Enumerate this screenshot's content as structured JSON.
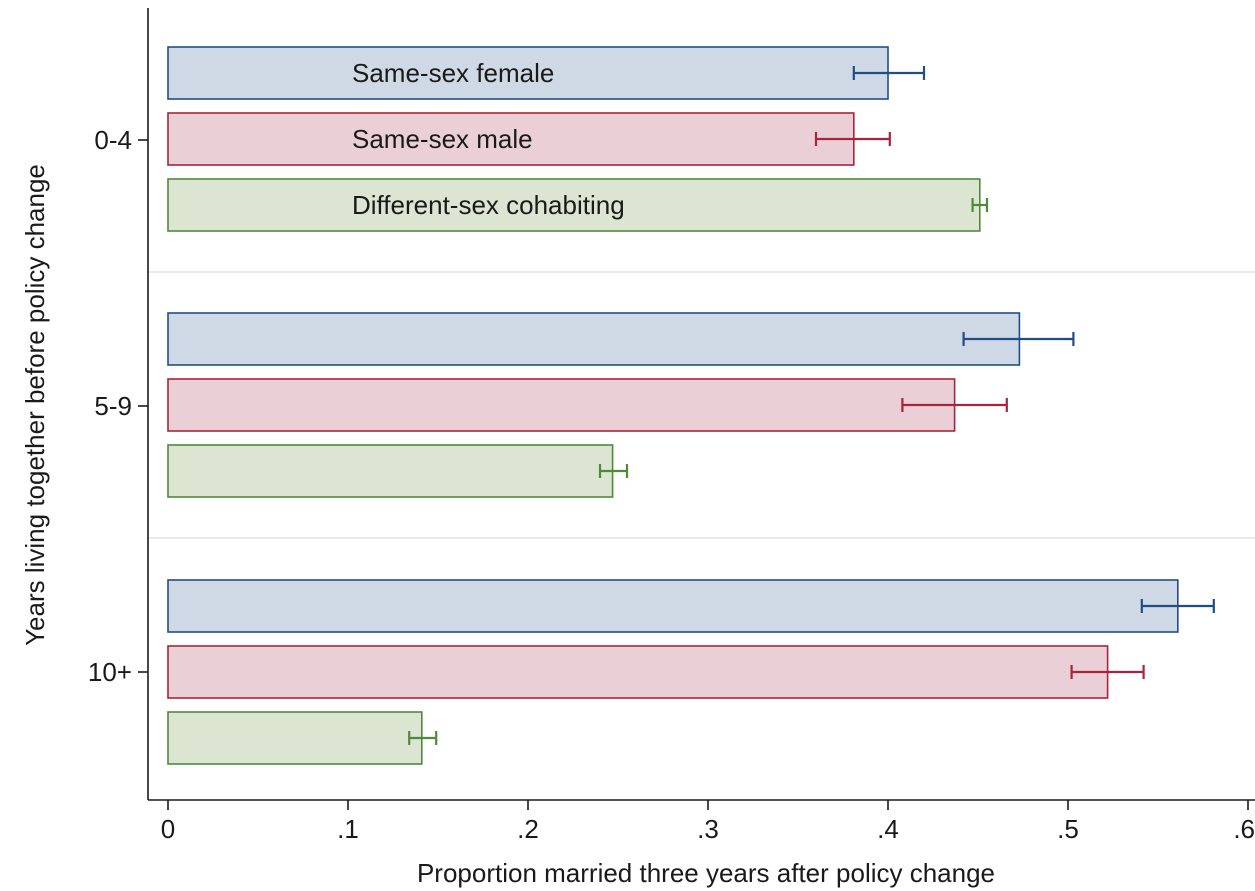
{
  "chart_data": {
    "type": "bar",
    "orientation": "horizontal",
    "xlabel": "Proportion married three years after policy change",
    "ylabel": "Years living together before policy change",
    "xlim": [
      0,
      0.6
    ],
    "x_ticks": [
      {
        "value": 0,
        "label": "0"
      },
      {
        "value": 0.1,
        "label": ".1"
      },
      {
        "value": 0.2,
        "label": ".2"
      },
      {
        "value": 0.3,
        "label": ".3"
      },
      {
        "value": 0.4,
        "label": ".4"
      },
      {
        "value": 0.5,
        "label": ".5"
      },
      {
        "value": 0.6,
        "label": ".6"
      }
    ],
    "categories": [
      "0-4",
      "5-9",
      "10+"
    ],
    "legend_placement": "inside bars of first group",
    "grid": false,
    "series": [
      {
        "name": "Same-sex female",
        "fill": "#cfd9e6",
        "stroke": "#1f4e87",
        "values": [
          0.4,
          0.473,
          0.561
        ],
        "ci_low": [
          0.381,
          0.442,
          0.541
        ],
        "ci_high": [
          0.42,
          0.503,
          0.581
        ]
      },
      {
        "name": "Same-sex male",
        "fill": "#ead0d6",
        "stroke": "#a8243c",
        "values": [
          0.381,
          0.437,
          0.522
        ],
        "ci_low": [
          0.36,
          0.408,
          0.502
        ],
        "ci_high": [
          0.401,
          0.466,
          0.542
        ]
      },
      {
        "name": "Different-sex cohabiting",
        "fill": "#dbe5d2",
        "stroke": "#4f8a3a",
        "values": [
          0.451,
          0.247,
          0.141
        ],
        "ci_low": [
          0.447,
          0.24,
          0.134
        ],
        "ci_high": [
          0.455,
          0.255,
          0.149
        ]
      }
    ]
  }
}
